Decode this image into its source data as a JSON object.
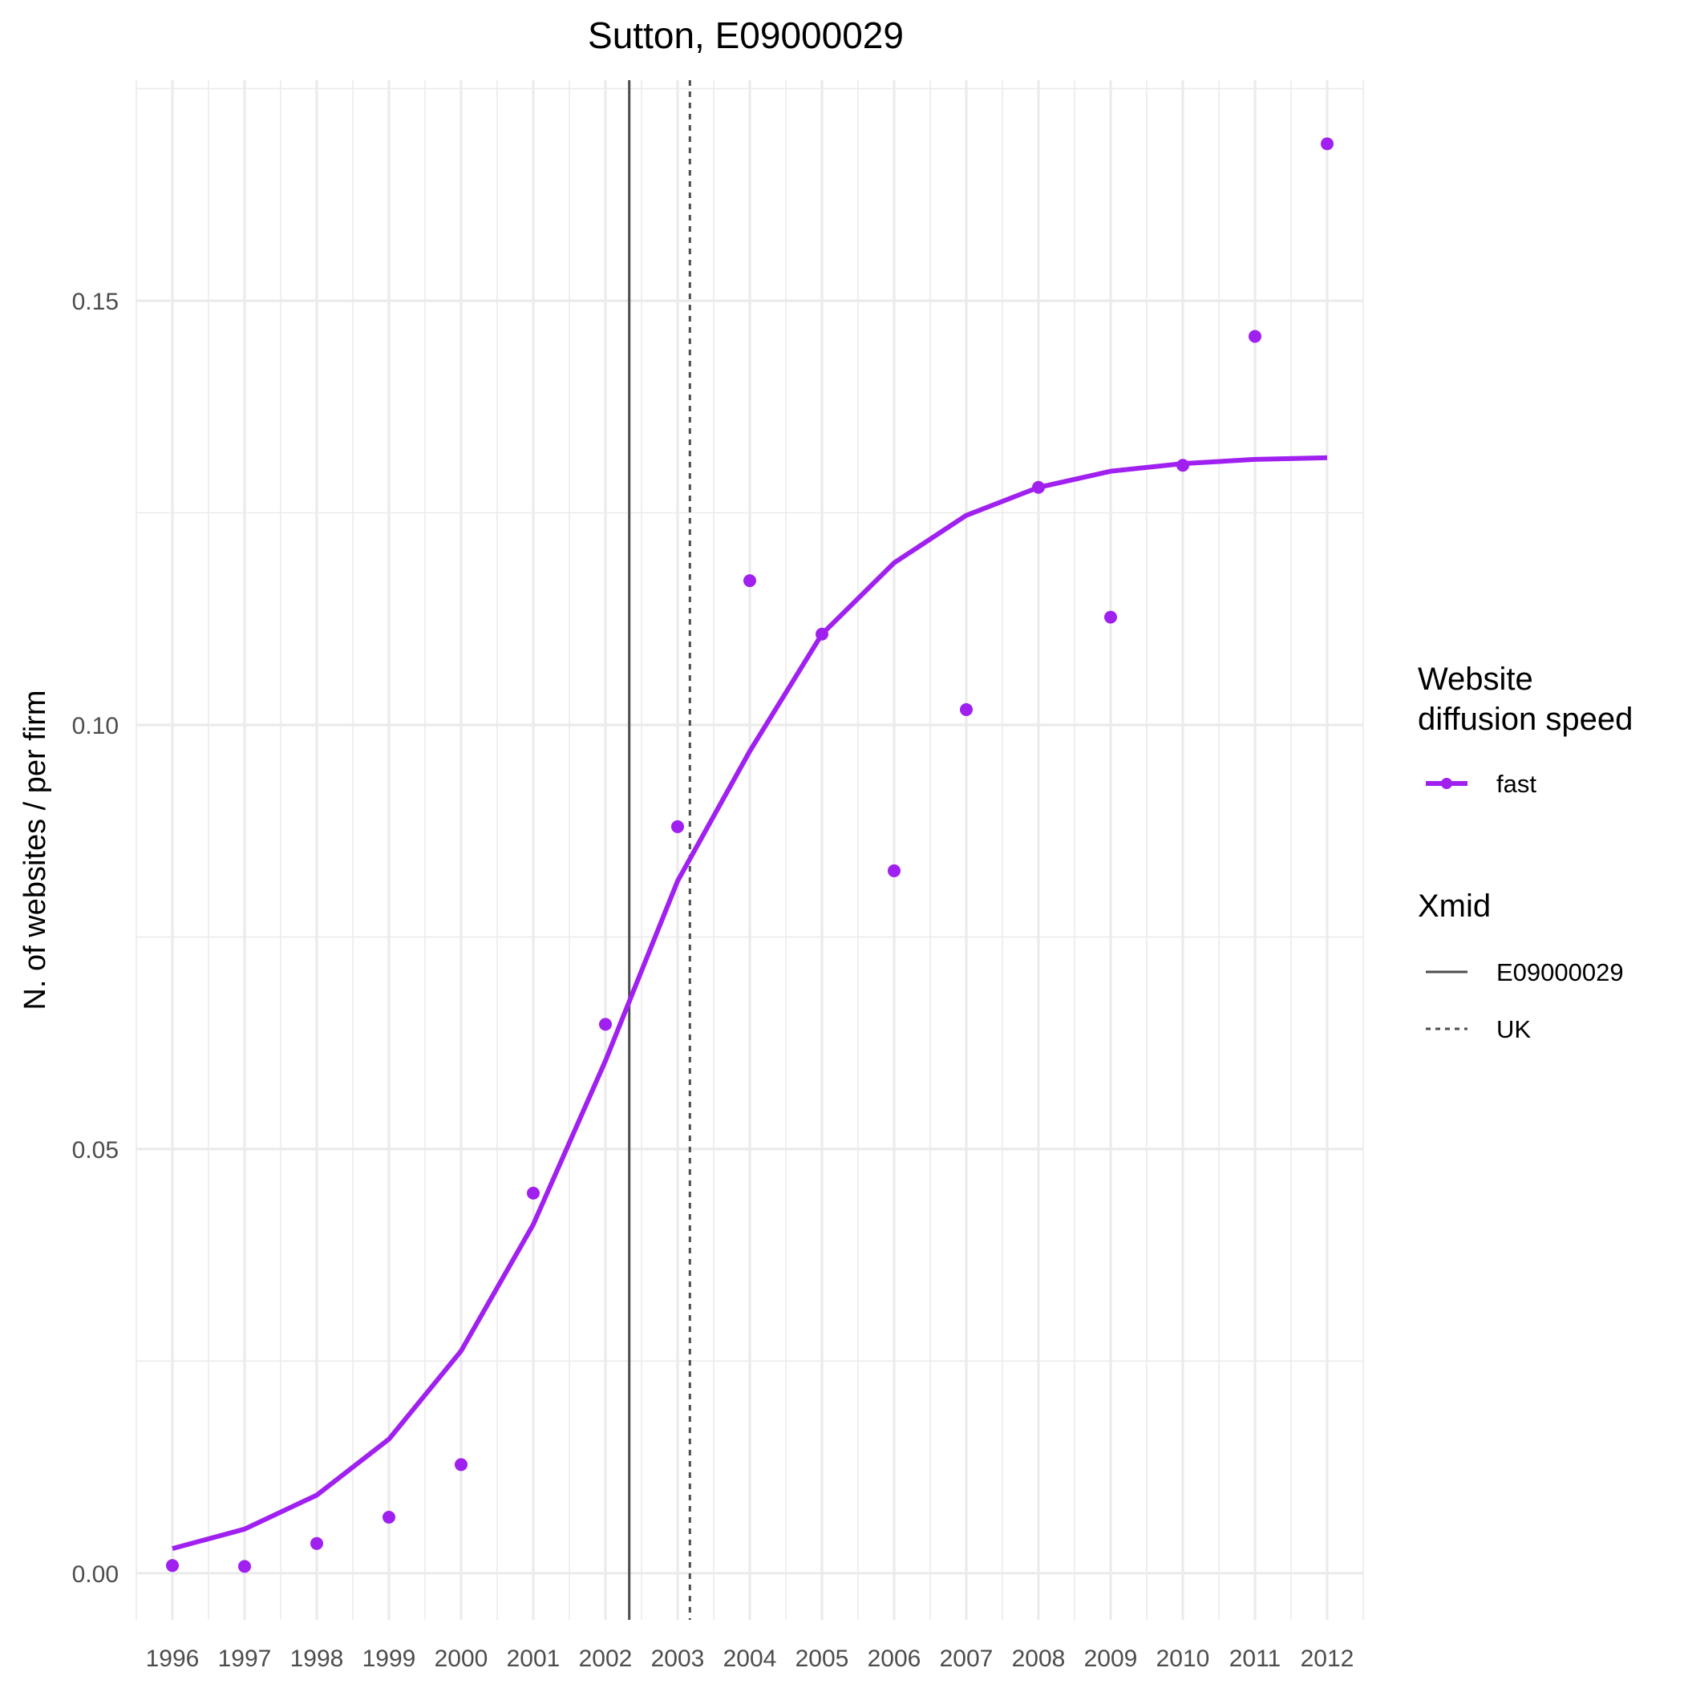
{
  "chart_data": {
    "type": "line",
    "title": "Sutton, E09000029",
    "xlabel": "",
    "ylabel": "N. of websites / per firm",
    "x_categories": [
      "1996",
      "1997",
      "1998",
      "1999",
      "2000",
      "2001",
      "2002",
      "2003",
      "2004",
      "2005",
      "2006",
      "2007",
      "2008",
      "2009",
      "2010",
      "2011",
      "2012"
    ],
    "y_ticks": [
      "0.00",
      "0.05",
      "0.10",
      "0.15"
    ],
    "y_tick_values": [
      0.0,
      0.05,
      0.1,
      0.15
    ],
    "xlim": [
      1995.5,
      2012.5
    ],
    "ylim": [
      -0.0055,
      0.176
    ],
    "grid": true,
    "legend_position": "right",
    "series": [
      {
        "name": "fast",
        "color": "#a020f0",
        "type": "line",
        "values": [
          0.0029,
          0.0052,
          0.0092,
          0.0158,
          0.0262,
          0.0411,
          0.0604,
          0.0816,
          0.0969,
          0.1107,
          0.1191,
          0.1247,
          0.128,
          0.1299,
          0.1308,
          0.1313,
          0.1315
        ]
      },
      {
        "name": "fast",
        "color": "#a020f0",
        "type": "scatter",
        "values": [
          0.0009,
          0.0008,
          0.0035,
          0.0066,
          0.0128,
          0.0448,
          0.0647,
          0.088,
          0.117,
          0.1107,
          0.0828,
          0.1018,
          0.128,
          0.1127,
          0.1306,
          0.1458,
          0.1685
        ]
      }
    ],
    "vlines": [
      {
        "name": "E09000029",
        "x": 2002.33,
        "style": "solid",
        "color": "#4d4d4d"
      },
      {
        "name": "UK",
        "x": 2003.17,
        "style": "dashed",
        "color": "#4d4d4d"
      }
    ],
    "legend": {
      "speed_title_line1": "Website",
      "speed_title_line2": "diffusion speed",
      "speed_items": [
        {
          "label": "fast",
          "color": "#a020f0"
        }
      ],
      "xmid_title": "Xmid",
      "xmid_items": [
        {
          "label": "E09000029",
          "style": "solid"
        },
        {
          "label": "UK",
          "style": "dashed"
        }
      ]
    }
  }
}
